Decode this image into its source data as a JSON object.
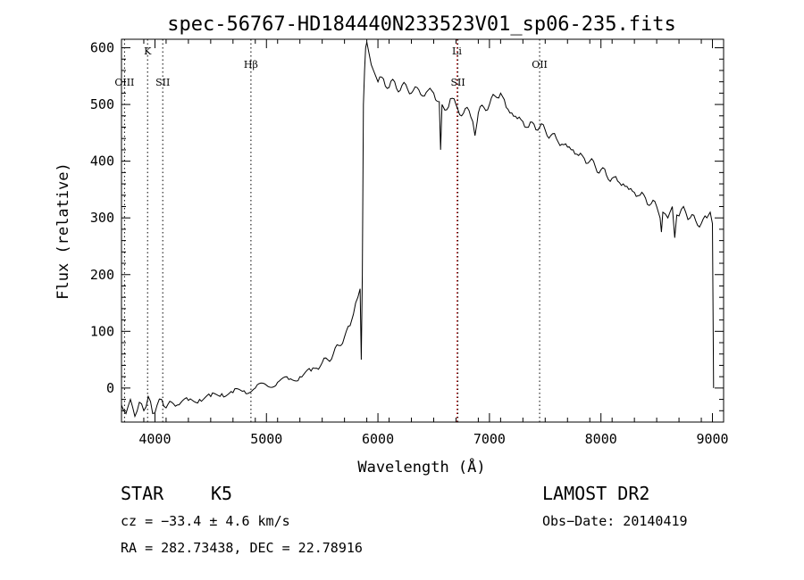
{
  "chart_data": {
    "type": "line",
    "title": "spec-56767-HD184440N233523V01_sp06-235.fits",
    "xlabel": "Wavelength (Å)",
    "ylabel": "Flux (relative)",
    "xlim": [
      3700,
      9100
    ],
    "ylim": [
      -60,
      615
    ],
    "xticks": [
      4000,
      5000,
      6000,
      7000,
      8000,
      9000
    ],
    "xtick_labels": [
      "4000",
      "5000",
      "6000",
      "7000",
      "8000",
      "9000"
    ],
    "yticks": [
      0,
      100,
      200,
      300,
      400,
      500,
      600
    ],
    "ytick_labels": [
      "0",
      "100",
      "200",
      "300",
      "400",
      "500",
      "600"
    ],
    "x_minor_step": 200,
    "y_minor_step": 20,
    "series": [
      {
        "name": "flux",
        "color": "#000000",
        "x": [
          3700,
          3740,
          3780,
          3820,
          3860,
          3900,
          3940,
          3980,
          4020,
          4060,
          4100,
          4150,
          4200,
          4300,
          4400,
          4500,
          4600,
          4700,
          4800,
          4900,
          5000,
          5100,
          5200,
          5300,
          5400,
          5450,
          5500,
          5550,
          5600,
          5650,
          5700,
          5750,
          5780,
          5800,
          5820,
          5840,
          5850,
          5860,
          5870,
          5880,
          5890,
          5900,
          5920,
          5940,
          5960,
          5980,
          6000,
          6050,
          6100,
          6150,
          6200,
          6250,
          6300,
          6350,
          6400,
          6450,
          6500,
          6550,
          6562,
          6575,
          6600,
          6650,
          6700,
          6750,
          6800,
          6850,
          6870,
          6890,
          6900,
          6950,
          7000,
          7050,
          7100,
          7150,
          7200,
          7250,
          7300,
          7350,
          7400,
          7450,
          7500,
          7550,
          7600,
          7650,
          7700,
          7750,
          7800,
          7850,
          7900,
          7950,
          8000,
          8050,
          8100,
          8150,
          8200,
          8250,
          8300,
          8350,
          8400,
          8450,
          8500,
          8530,
          8542,
          8555,
          8600,
          8640,
          8662,
          8680,
          8720,
          8760,
          8800,
          8850,
          8900,
          8950,
          8980,
          9000,
          9010
        ],
        "y": [
          -30,
          -45,
          -20,
          -50,
          -25,
          -40,
          -15,
          -45,
          -30,
          -20,
          -35,
          -25,
          -30,
          -22,
          -20,
          -15,
          -10,
          -8,
          -5,
          0,
          5,
          10,
          15,
          20,
          30,
          35,
          45,
          50,
          60,
          75,
          90,
          110,
          130,
          150,
          160,
          175,
          50,
          200,
          500,
          560,
          600,
          610,
          590,
          570,
          560,
          550,
          540,
          545,
          530,
          540,
          525,
          535,
          520,
          530,
          515,
          525,
          520,
          505,
          420,
          500,
          490,
          510,
          500,
          480,
          495,
          470,
          445,
          470,
          485,
          495,
          500,
          515,
          520,
          495,
          485,
          475,
          470,
          460,
          465,
          460,
          455,
          445,
          440,
          430,
          425,
          420,
          410,
          405,
          400,
          390,
          385,
          375,
          370,
          365,
          360,
          350,
          345,
          340,
          335,
          325,
          320,
          300,
          275,
          310,
          300,
          320,
          265,
          305,
          315,
          310,
          300,
          295,
          290,
          300,
          310,
          290,
          0
        ]
      }
    ],
    "lines": [
      {
        "label": "K",
        "x": 3934,
        "color": "#000000",
        "label_y": 588
      },
      {
        "label": "OIII",
        "x": 3727,
        "color": "#000000",
        "label_y": 533
      },
      {
        "label": "SII",
        "x": 4070,
        "color": "#000000",
        "label_y": 533
      },
      {
        "label": "Hβ",
        "x": 4861,
        "color": "#000000",
        "label_y": 565
      },
      {
        "label": "Li",
        "x": 6708,
        "color": "#cc0000",
        "label_y": 588
      },
      {
        "label": "SII",
        "x": 6717,
        "color": "#000000",
        "label_y": 533
      },
      {
        "label": "OII",
        "x": 7450,
        "color": "#000000",
        "label_y": 565
      }
    ]
  },
  "info": {
    "class": "STAR",
    "subclass": "K5",
    "survey": "LAMOST DR2",
    "cz": "cz = −33.4 ± 4.6 km/s",
    "obs_date": "Obs−Date: 20140419",
    "radec": "RA = 282.73438, DEC =  22.78916"
  }
}
